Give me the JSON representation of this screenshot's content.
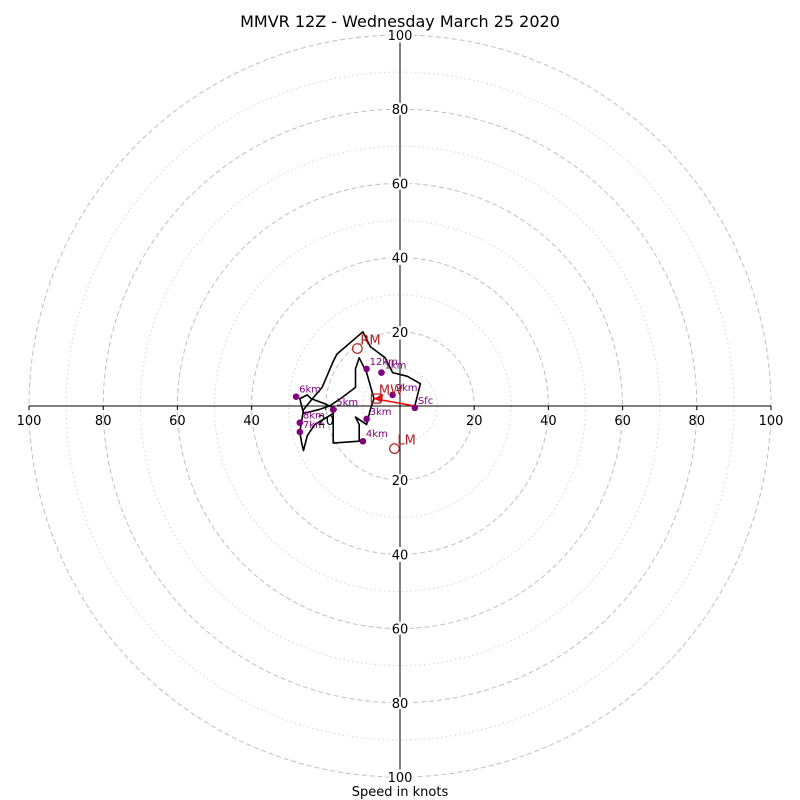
{
  "chart_data": {
    "type": "hodograph",
    "title": "MMVR 12Z - Wednesday March 25 2020",
    "xlabel": "Speed in knots",
    "ring_major": [
      20,
      40,
      60,
      80,
      100
    ],
    "ring_minor": [
      10,
      30,
      50,
      70,
      90
    ],
    "ticks": [
      "100",
      "80",
      "60",
      "40",
      "20",
      "20",
      "40",
      "60",
      "80",
      "100"
    ],
    "ylim": [
      -100,
      100
    ],
    "xlim": [
      -100,
      100
    ],
    "grid": true,
    "profile": [
      [
        4,
        0
      ],
      [
        5.5,
        6
      ],
      [
        2,
        8
      ],
      [
        -2,
        9
      ],
      [
        -4,
        13
      ],
      [
        -8,
        16
      ],
      [
        -10,
        20
      ],
      [
        -17,
        14
      ],
      [
        -18,
        12
      ],
      [
        -21,
        5
      ],
      [
        -24,
        1.5
      ],
      [
        -26,
        -1
      ],
      [
        -27,
        -7
      ],
      [
        -26.5,
        -10
      ],
      [
        -26,
        -12
      ],
      [
        -25,
        -8
      ],
      [
        -23,
        -5
      ],
      [
        -18,
        -2
      ],
      [
        -18,
        -10
      ],
      [
        -11,
        -9.5
      ],
      [
        -11,
        -5
      ],
      [
        -12,
        -3
      ],
      [
        -9,
        -5
      ],
      [
        -8,
        -1
      ],
      [
        -7,
        2
      ],
      [
        -9,
        9
      ],
      [
        -11,
        13
      ],
      [
        -12,
        10
      ],
      [
        -12,
        5
      ],
      [
        -16,
        2
      ],
      [
        -19,
        0
      ],
      [
        -22,
        -1
      ],
      [
        -26,
        -2
      ],
      [
        -27,
        2
      ],
      [
        -25,
        3
      ],
      [
        -24,
        2
      ],
      [
        -20,
        0.5
      ],
      [
        -17,
        -1
      ]
    ],
    "height_points": [
      {
        "label": "Sfc",
        "u": 4,
        "v": -0.5
      },
      {
        "label": "1km",
        "u": -5,
        "v": 9
      },
      {
        "label": "2km",
        "u": -2,
        "v": 3
      },
      {
        "label": "3km",
        "u": -9,
        "v": -3.5
      },
      {
        "label": "4km",
        "u": -10,
        "v": -9.5
      },
      {
        "label": "5km",
        "u": -18,
        "v": -1
      },
      {
        "label": "6km",
        "u": -28,
        "v": 2.5
      },
      {
        "label": "7km",
        "u": -27,
        "v": -7
      },
      {
        "label": "8km",
        "u": -27,
        "v": -4.5
      },
      {
        "label": "12km",
        "u": -9,
        "v": 10
      }
    ],
    "motion_markers": [
      {
        "label": "RM",
        "u": -11.5,
        "v": 15.5
      },
      {
        "label": "MW",
        "u": -6.5,
        "v": 2
      },
      {
        "label": "LM",
        "u": -1.5,
        "v": -11.5
      }
    ],
    "shear_vector": {
      "from": [
        4,
        0
      ],
      "to": [
        -7,
        2
      ]
    },
    "colors": {
      "grid": "#c0c0c0",
      "profile": "#000000",
      "points": "#800080",
      "motion": "#b22222",
      "shear": "#ff0000"
    }
  }
}
